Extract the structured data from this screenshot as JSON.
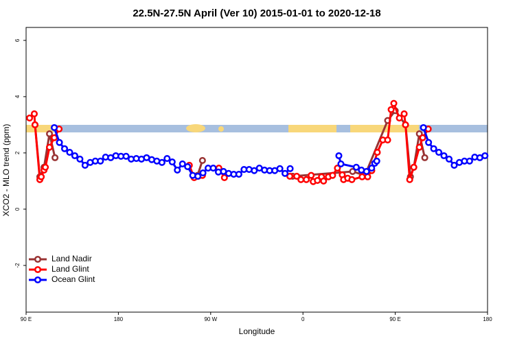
{
  "chart_data": {
    "type": "line",
    "title": "22.5N-27.5N April (Ver 10)   2015-01-01 to 2020-12-18",
    "x_label": "Longitude",
    "y_label": "XCO2 - MLO trend (ppm)",
    "xlim": [
      90,
      540
    ],
    "ylim": [
      -3.66,
      6.46
    ],
    "xticks": [
      {
        "value": 90,
        "label": "90 E"
      },
      180,
      {
        "value": 270,
        "label": "90 W"
      },
      {
        "value": 360,
        "label": "0"
      },
      {
        "value": 450,
        "label": "90 E"
      },
      {
        "value": 540,
        "label": "180"
      }
    ],
    "yticks": [
      -2,
      0,
      2,
      4,
      6
    ],
    "legend": "bottomleft",
    "series": [
      {
        "name": "Land Nadir",
        "color": "#993333",
        "x": [
          98.7,
          103.4,
          107.5,
          112.8,
          118.2,
          200,
          253.2,
          257.2,
          262,
          300,
          349.9,
          408.4,
          420.4,
          442.6,
          450,
          460,
          464.8,
          468.1,
          473.5,
          478.8
        ],
        "values": [
          3.0,
          1.15,
          1.49,
          2.68,
          1.83,
          null,
          1.17,
          1.2,
          1.73,
          null,
          1.17,
          1.34,
          1.2,
          3.15,
          3.5,
          3.0,
          1.15,
          1.49,
          2.68,
          1.83
        ]
      },
      {
        "name": "Land Glint",
        "color": "#ff0000",
        "x": [
          93.4,
          98,
          98.7,
          103.4,
          104.8,
          107.5,
          108.8,
          112.8,
          117.5,
          122.2,
          200,
          249.2,
          253.9,
          257.9,
          262,
          265,
          278,
          283.4,
          300,
          347.2,
          353.9,
          358,
          363.3,
          368,
          370,
          374.1,
          378.1,
          380.1,
          384.8,
          388.9,
          393.6,
          398.3,
          399.6,
          403.6,
          407.7,
          417.7,
          423.1,
          427.1,
          432.5,
          437.9,
          442.6,
          446,
          448.6,
          454,
          458.7,
          460,
          464.1,
          468.1,
          473.5,
          476.8,
          482.2
        ],
        "values": [
          3.24,
          3.39,
          3.0,
          1.05,
          1.15,
          1.39,
          1.49,
          2.2,
          2.54,
          2.85,
          null,
          1.56,
          1.12,
          1.17,
          1.2,
          null,
          1.46,
          1.12,
          null,
          1.17,
          1.17,
          1.05,
          1.05,
          1.2,
          0.98,
          1.02,
          1.15,
          1.0,
          1.15,
          1.2,
          1.46,
          1.22,
          1.05,
          1.1,
          1.05,
          1.15,
          1.15,
          1.37,
          2.02,
          2.46,
          2.46,
          3.54,
          3.76,
          3.24,
          3.39,
          3.0,
          1.05,
          1.49,
          2.2,
          2.54,
          2.85
        ]
      },
      {
        "name": "Ocean Glint",
        "color": "#0000ff",
        "x": [
          117.5,
          122.5,
          127.5,
          132.5,
          137.5,
          142.5,
          147.5,
          152.5,
          157.5,
          162.5,
          167.5,
          172.5,
          177.5,
          182.5,
          187.5,
          192.5,
          197.5,
          202.5,
          207.5,
          212.5,
          217.5,
          222.5,
          227.5,
          232.5,
          237.5,
          242.5,
          247.5,
          252.5,
          257.5,
          262.5,
          267.5,
          272.5,
          277.5,
          282.5,
          287.5,
          292.5,
          297.5,
          302.5,
          307.5,
          312.5,
          317.5,
          322.5,
          327.5,
          332.5,
          337.5,
          342.5,
          347.5,
          372.5,
          395,
          397,
          412,
          417,
          422,
          427,
          430,
          432,
          455,
          477.5,
          482.5,
          487.5,
          492.5,
          497.5,
          502.5,
          507.5,
          512.5,
          517.5,
          522.5,
          527.5,
          532.5,
          537.5
        ],
        "values": [
          2.9,
          2.37,
          2.15,
          2.02,
          1.9,
          1.78,
          1.56,
          1.66,
          1.71,
          1.71,
          1.85,
          1.83,
          1.9,
          1.88,
          1.88,
          1.78,
          1.8,
          1.78,
          1.83,
          1.76,
          1.71,
          1.66,
          1.8,
          1.68,
          1.39,
          1.61,
          1.51,
          1.2,
          1.17,
          1.29,
          1.46,
          1.46,
          1.32,
          1.34,
          1.27,
          1.24,
          1.24,
          1.41,
          1.41,
          1.37,
          1.46,
          1.39,
          1.37,
          1.37,
          1.44,
          1.27,
          1.44,
          null,
          1.9,
          1.61,
          1.49,
          1.39,
          1.34,
          1.46,
          1.63,
          1.71,
          null,
          2.9,
          2.37,
          2.15,
          2.02,
          1.9,
          1.78,
          1.56,
          1.66,
          1.71,
          1.71,
          1.85,
          1.83,
          1.9
        ]
      }
    ]
  }
}
